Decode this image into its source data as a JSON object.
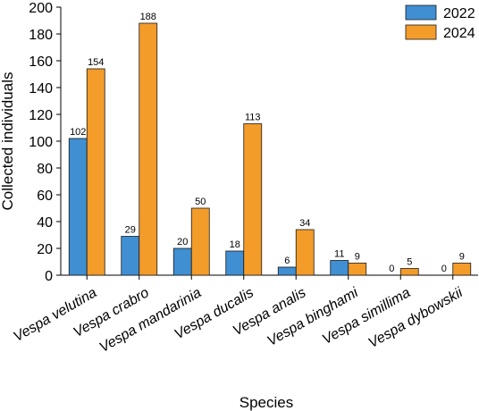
{
  "chart_data": {
    "type": "bar",
    "xlabel": "Species",
    "ylabel": "Collected individuals",
    "ylim": [
      0,
      200
    ],
    "yticks": [
      0,
      20,
      40,
      60,
      80,
      100,
      120,
      140,
      160,
      180,
      200
    ],
    "categories": [
      "Vespa velutina",
      "Vespa crabro",
      "Vespa mandarinia",
      "Vespa ducalis",
      "Vespa analis",
      "Vespa binghami",
      "Vespa simillima",
      "Vespa dybowskii"
    ],
    "series": [
      {
        "name": "2022",
        "color": "#3F8FD2",
        "values": [
          102,
          29,
          20,
          18,
          6,
          11,
          0,
          0
        ]
      },
      {
        "name": "2024",
        "color": "#F39C2A",
        "values": [
          154,
          188,
          50,
          113,
          34,
          9,
          5,
          9
        ]
      }
    ],
    "legend_position": "top-right",
    "grid": false
  }
}
